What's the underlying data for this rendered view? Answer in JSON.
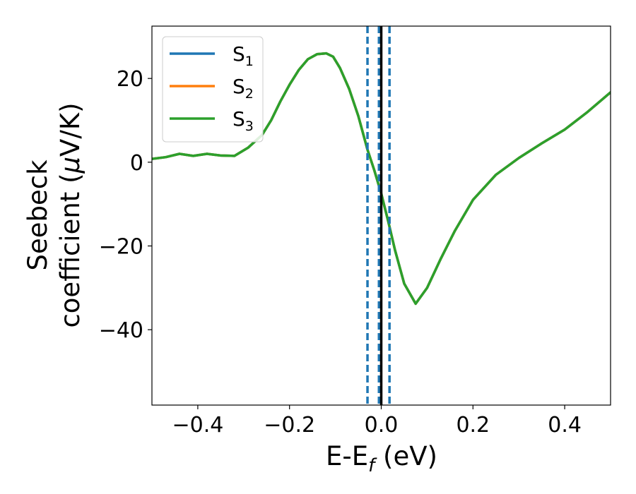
{
  "chart_data": {
    "type": "line",
    "title": "",
    "xlabel": {
      "main": "E-E",
      "sub": "f",
      "unit": " (eV)"
    },
    "ylabel": {
      "line1": "Seebeck",
      "line2_pre": "coefficient  (",
      "mu": "μ",
      "line2_post": "V/K)"
    },
    "xlim": [
      -0.5,
      0.5
    ],
    "ylim": [
      -58,
      32.5
    ],
    "xticks": [
      -0.4,
      -0.2,
      0.0,
      0.2,
      0.4
    ],
    "xtick_labels": [
      "−0.4",
      "−0.2",
      "0.0",
      "0.2",
      "0.4"
    ],
    "yticks": [
      20,
      0,
      -20,
      -40
    ],
    "ytick_labels": [
      "20",
      "0",
      "−20",
      "−40"
    ],
    "grid": false,
    "legend_position": "top-left",
    "series": [
      {
        "name": "S",
        "sub": "1",
        "color": "#1f77b4",
        "x": [
          -0.5,
          -0.47,
          -0.44,
          -0.41,
          -0.38,
          -0.35,
          -0.32,
          -0.29,
          -0.26,
          -0.24,
          -0.22,
          -0.2,
          -0.18,
          -0.16,
          -0.14,
          -0.12,
          -0.105,
          -0.09,
          -0.07,
          -0.05,
          -0.03,
          -0.015,
          0.0,
          0.015,
          0.03,
          0.05,
          0.075,
          0.1,
          0.13,
          0.16,
          0.2,
          0.25,
          0.3,
          0.35,
          0.4,
          0.45,
          0.5
        ],
        "y": [
          0.8,
          1.2,
          2.0,
          1.5,
          2.0,
          1.6,
          1.5,
          3.5,
          6.5,
          10.0,
          14.5,
          18.5,
          22.0,
          24.6,
          25.8,
          26.0,
          25.2,
          22.5,
          17.5,
          11.0,
          3.0,
          -2.0,
          -7.5,
          -14.0,
          -21.0,
          -29.0,
          -33.8,
          -30.0,
          -23.0,
          -16.5,
          -9.0,
          -3.0,
          1.0,
          4.5,
          7.8,
          12.0,
          16.7
        ]
      },
      {
        "name": "S",
        "sub": "2",
        "color": "#ff7f0e",
        "x": [
          -0.5,
          -0.47,
          -0.44,
          -0.41,
          -0.38,
          -0.35,
          -0.32,
          -0.29,
          -0.26,
          -0.24,
          -0.22,
          -0.2,
          -0.18,
          -0.16,
          -0.14,
          -0.12,
          -0.105,
          -0.09,
          -0.07,
          -0.05,
          -0.03,
          -0.015,
          0.0,
          0.015,
          0.03,
          0.05,
          0.075,
          0.1,
          0.13,
          0.16,
          0.2,
          0.25,
          0.3,
          0.35,
          0.4,
          0.45,
          0.5
        ],
        "y": [
          0.8,
          1.2,
          2.0,
          1.5,
          2.0,
          1.6,
          1.5,
          3.5,
          6.5,
          10.0,
          14.5,
          18.5,
          22.0,
          24.6,
          25.8,
          26.0,
          25.2,
          22.5,
          17.5,
          11.0,
          3.0,
          -2.0,
          -7.5,
          -14.0,
          -21.0,
          -29.0,
          -33.8,
          -30.0,
          -23.0,
          -16.5,
          -9.0,
          -3.0,
          1.0,
          4.5,
          7.8,
          12.0,
          16.7
        ]
      },
      {
        "name": "S",
        "sub": "3",
        "color": "#2ca02c",
        "x": [
          -0.5,
          -0.47,
          -0.44,
          -0.41,
          -0.38,
          -0.35,
          -0.32,
          -0.29,
          -0.26,
          -0.24,
          -0.22,
          -0.2,
          -0.18,
          -0.16,
          -0.14,
          -0.12,
          -0.105,
          -0.09,
          -0.07,
          -0.05,
          -0.03,
          -0.015,
          0.0,
          0.015,
          0.03,
          0.05,
          0.075,
          0.1,
          0.13,
          0.16,
          0.2,
          0.25,
          0.3,
          0.35,
          0.4,
          0.45,
          0.5
        ],
        "y": [
          0.8,
          1.2,
          2.0,
          1.5,
          2.0,
          1.6,
          1.5,
          3.5,
          6.5,
          10.0,
          14.5,
          18.5,
          22.0,
          24.6,
          25.8,
          26.0,
          25.2,
          22.5,
          17.5,
          11.0,
          3.0,
          -2.0,
          -7.5,
          -14.0,
          -21.0,
          -29.0,
          -33.8,
          -30.0,
          -23.0,
          -16.5,
          -9.0,
          -3.0,
          1.0,
          4.5,
          7.8,
          12.0,
          16.7
        ]
      }
    ],
    "vlines": [
      {
        "x": -0.03,
        "color": "#1f77b4",
        "style": "dashed"
      },
      {
        "x": -0.005,
        "color": "#1f77b4",
        "style": "dashed"
      },
      {
        "x": 0.0,
        "color": "#000000",
        "style": "solid"
      },
      {
        "x": 0.018,
        "color": "#1f77b4",
        "style": "dashed"
      }
    ]
  }
}
